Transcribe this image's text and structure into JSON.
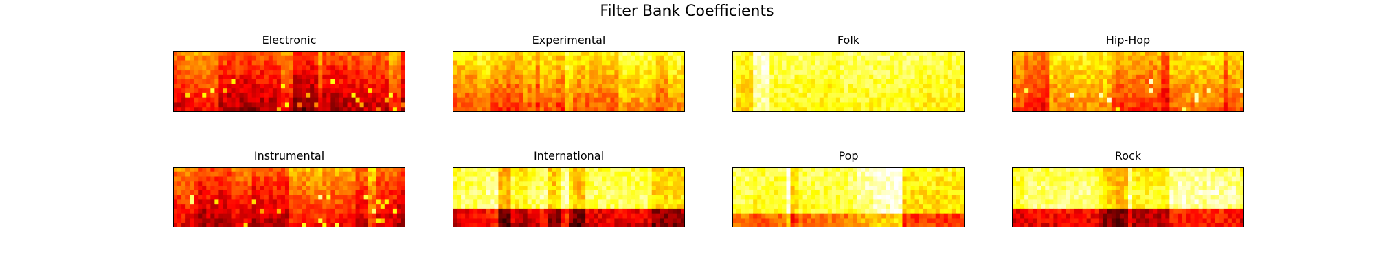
{
  "chart_data": {
    "type": "heatmap",
    "title": "Filter Bank Coefficients",
    "colormap": "hot",
    "axes_visible": false,
    "grid": "2x4",
    "panels": [
      {
        "name": "Electronic",
        "style": "dark",
        "seed": 11
      },
      {
        "name": "Experimental",
        "style": "warm",
        "seed": 23
      },
      {
        "name": "Folk",
        "style": "bright",
        "seed": 37
      },
      {
        "name": "Hip-Hop",
        "style": "mixed",
        "seed": 41
      },
      {
        "name": "Instrumental",
        "style": "dark",
        "seed": 53
      },
      {
        "name": "International",
        "style": "lowband",
        "seed": 67
      },
      {
        "name": "Pop",
        "style": "brightband",
        "seed": 71
      },
      {
        "name": "Rock",
        "style": "lowband",
        "seed": 83
      }
    ]
  }
}
